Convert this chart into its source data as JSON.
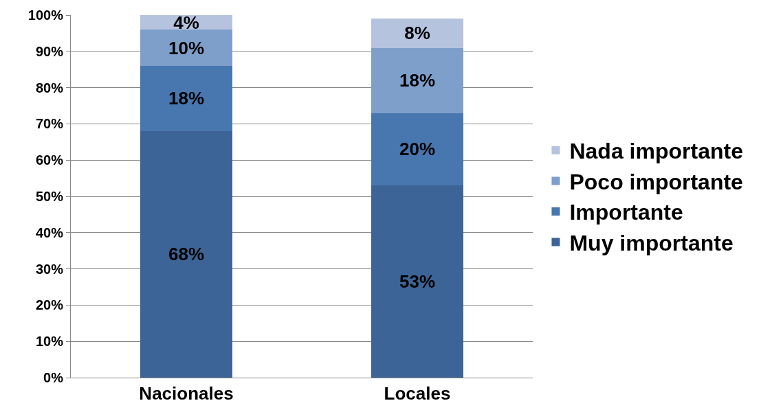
{
  "chart_data": {
    "type": "bar",
    "stacked": true,
    "categories": [
      "Nacionales",
      "Locales"
    ],
    "series": [
      {
        "name": "Muy importante",
        "color": "#3d6496",
        "values": [
          68,
          53
        ],
        "value_labels": [
          "68%",
          "53%"
        ]
      },
      {
        "name": "Importante",
        "color": "#4877b0",
        "values": [
          18,
          20
        ],
        "value_labels": [
          "18%",
          "20%"
        ]
      },
      {
        "name": "Poco importante",
        "color": "#7f9fcb",
        "values": [
          10,
          18
        ],
        "value_labels": [
          "10%",
          "18%"
        ]
      },
      {
        "name": "Nada importante",
        "color": "#b5c3df",
        "values": [
          4,
          8
        ],
        "value_labels": [
          "4%",
          "8%"
        ]
      }
    ],
    "ylim": [
      0,
      100
    ],
    "yticks": [
      {
        "value": 0,
        "label": "0%"
      },
      {
        "value": 10,
        "label": "10%"
      },
      {
        "value": 20,
        "label": "20%"
      },
      {
        "value": 30,
        "label": "30%"
      },
      {
        "value": 40,
        "label": "40%"
      },
      {
        "value": 50,
        "label": "50%"
      },
      {
        "value": 60,
        "label": "60%"
      },
      {
        "value": 70,
        "label": "70%"
      },
      {
        "value": 80,
        "label": "80%"
      },
      {
        "value": 90,
        "label": "90%"
      },
      {
        "value": 100,
        "label": "100%"
      }
    ],
    "grid": "y",
    "legend": "right"
  }
}
